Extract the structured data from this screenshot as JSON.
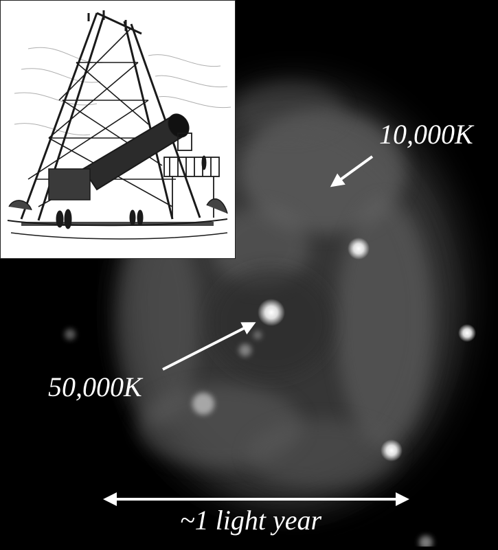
{
  "annotations": {
    "outer_temperature": "10,000K",
    "inner_temperature": "50,000K",
    "scale_label": "~1 light year"
  },
  "colors": {
    "background": "#000000",
    "nebula_glow": "#9a9a9a",
    "label_text": "#ffffff",
    "inset_background": "#ffffff",
    "engraving_ink": "#1a1a1a"
  },
  "icons": {
    "outer_pointer": "arrow-down-left-icon",
    "inner_pointer": "arrow-up-right-icon",
    "scale_bar": "double-headed-arrow-icon"
  }
}
